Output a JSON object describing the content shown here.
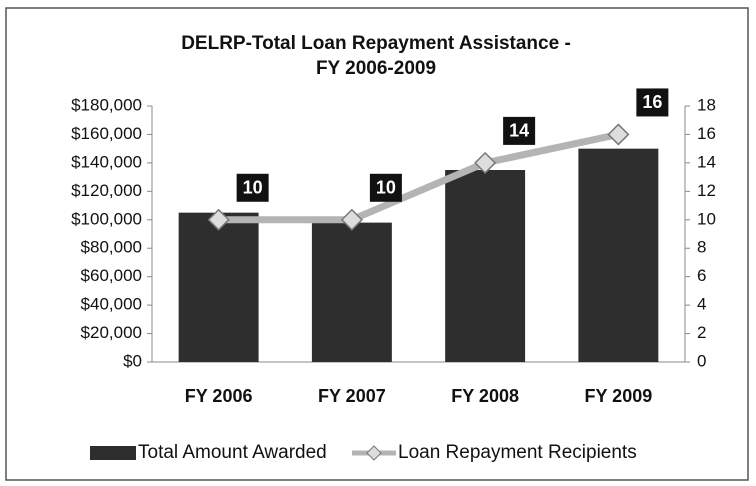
{
  "chart_data": {
    "type": "bar_line",
    "title": [
      "DELRP-Total Loan Repayment Assistance -",
      "FY 2006-2009"
    ],
    "categories": [
      "FY 2006",
      "FY 2007",
      "FY 2008",
      "FY 2009"
    ],
    "series": [
      {
        "name": "Total Amount Awarded",
        "type": "bar",
        "color": "#2e2e2e",
        "values": [
          105000,
          98000,
          135000,
          150000
        ]
      },
      {
        "name": "Loan Repayment Recipients",
        "type": "line",
        "axis": "y2",
        "color": "#b4b4b4",
        "values": [
          10,
          10,
          14,
          16
        ]
      }
    ],
    "ylim": [
      0,
      180000
    ],
    "yticks": [
      {
        "value": 0,
        "label": "$0"
      },
      {
        "value": 20000,
        "label": "$20,000"
      },
      {
        "value": 40000,
        "label": "$40,000"
      },
      {
        "value": 60000,
        "label": "$60,000"
      },
      {
        "value": 80000,
        "label": "$80,000"
      },
      {
        "value": 100000,
        "label": "$100,000"
      },
      {
        "value": 120000,
        "label": "$120,000"
      },
      {
        "value": 140000,
        "label": "$140,000"
      },
      {
        "value": 160000,
        "label": "$160,000"
      },
      {
        "value": 180000,
        "label": "$180,000"
      }
    ],
    "y2lim": [
      0,
      18
    ],
    "y2ticks": [
      0,
      2,
      4,
      6,
      8,
      10,
      12,
      14,
      16,
      18
    ],
    "legend": "bottom"
  }
}
